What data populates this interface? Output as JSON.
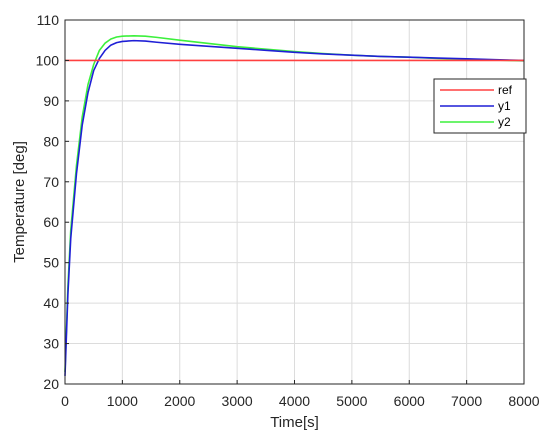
{
  "chart_data": {
    "type": "line",
    "title": "",
    "xlabel": "Time[s]",
    "ylabel": "Temperature [deg]",
    "xlim": [
      0,
      8000
    ],
    "ylim": [
      20,
      110
    ],
    "xticks": [
      0,
      1000,
      2000,
      3000,
      4000,
      5000,
      6000,
      7000,
      8000
    ],
    "xtick_labels": [
      "0",
      "1000",
      "2000",
      "3000",
      "4000",
      "5000",
      "6000",
      "7000",
      "8000"
    ],
    "yticks": [
      20,
      30,
      40,
      50,
      60,
      70,
      80,
      90,
      100,
      110
    ],
    "ytick_labels": [
      "20",
      "30",
      "40",
      "50",
      "60",
      "70",
      "80",
      "90",
      "100",
      "110"
    ],
    "grid": true,
    "legend_position": "upper-right",
    "series": [
      {
        "name": "ref",
        "color": "#ff4040",
        "x": [
          0,
          8000
        ],
        "y": [
          100,
          100
        ]
      },
      {
        "name": "y1",
        "color": "#1f1fd6",
        "x": [
          0,
          50,
          100,
          200,
          300,
          400,
          500,
          600,
          700,
          800,
          900,
          1000,
          1200,
          1400,
          1600,
          2000,
          2500,
          3000,
          3500,
          4000,
          4500,
          5000,
          5500,
          6000,
          6500,
          7000,
          7500,
          8000
        ],
        "y": [
          22,
          42,
          56,
          72,
          84,
          92,
          97.5,
          100.5,
          102.5,
          103.8,
          104.4,
          104.7,
          104.9,
          104.8,
          104.5,
          104,
          103.5,
          103,
          102.5,
          102,
          101.6,
          101.3,
          101,
          100.8,
          100.6,
          100.4,
          100.2,
          100
        ]
      },
      {
        "name": "y2",
        "color": "#3cf03c",
        "x": [
          0,
          50,
          100,
          200,
          300,
          400,
          500,
          600,
          700,
          800,
          900,
          1000,
          1200,
          1400,
          1600,
          2000,
          2500,
          3000,
          3500,
          4000,
          4500,
          5000,
          5500,
          6000,
          6500,
          7000,
          7500,
          8000
        ],
        "y": [
          23,
          44,
          58,
          74,
          86,
          94,
          99,
          102.5,
          104.3,
          105.3,
          105.8,
          106,
          106.1,
          106,
          105.7,
          105,
          104.2,
          103.4,
          102.8,
          102.2,
          101.7,
          101.3,
          101,
          100.8,
          100.5,
          100.3,
          100.1,
          99.9
        ]
      }
    ]
  }
}
